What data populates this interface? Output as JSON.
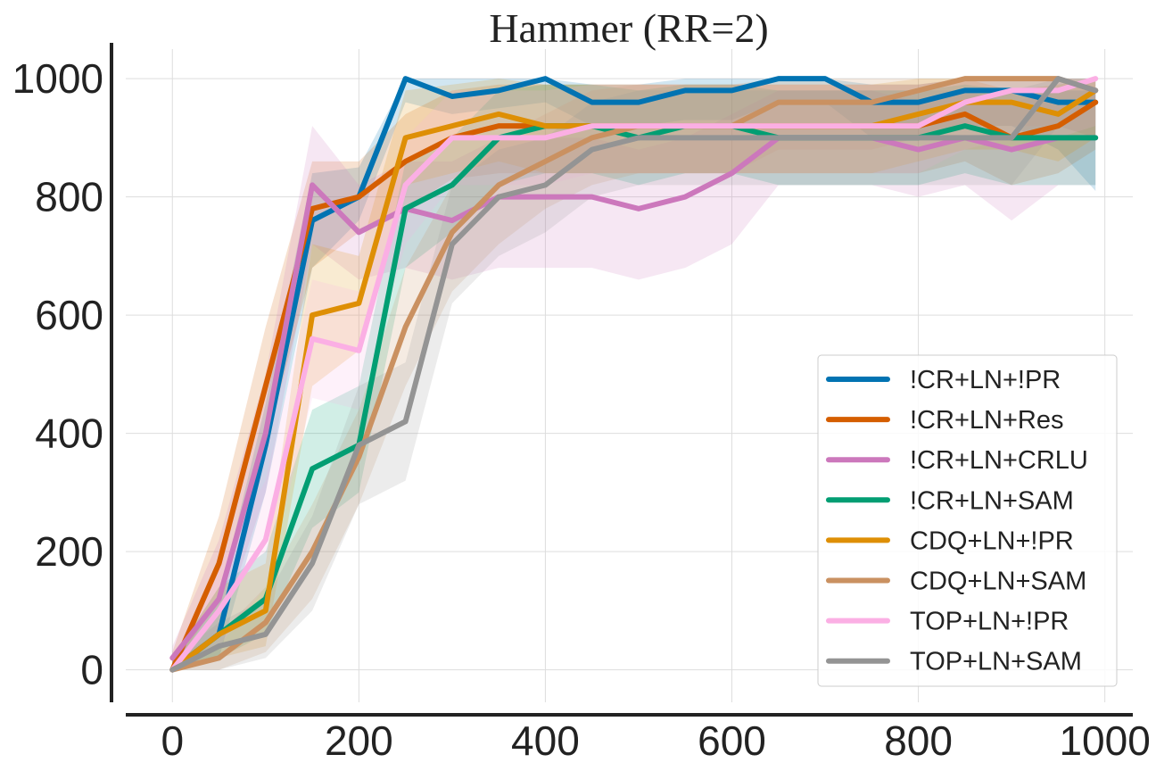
{
  "chart_data": {
    "type": "line",
    "title": "Hammer (RR=2)",
    "xlabel": "",
    "ylabel": "",
    "xlim": [
      -50,
      1030
    ],
    "ylim": [
      -55,
      1050
    ],
    "xticks": [
      0,
      200,
      400,
      600,
      800,
      1000
    ],
    "yticks": [
      0,
      200,
      400,
      600,
      800,
      1000
    ],
    "grid": true,
    "legend_position": "lower-right",
    "x": [
      0,
      50,
      100,
      150,
      200,
      250,
      300,
      350,
      400,
      450,
      500,
      550,
      600,
      650,
      700,
      750,
      800,
      850,
      900,
      950,
      990
    ],
    "series": [
      {
        "name": "!CR+LN+!PR",
        "color": "#0173b2",
        "values": [
          0,
          60,
          380,
          760,
          800,
          1000,
          970,
          980,
          1000,
          960,
          960,
          980,
          980,
          1000,
          1000,
          960,
          960,
          980,
          980,
          960,
          960
        ],
        "lower": [
          0,
          20,
          300,
          680,
          760,
          960,
          940,
          950,
          960,
          920,
          920,
          930,
          930,
          960,
          960,
          900,
          900,
          920,
          920,
          880,
          810
        ],
        "upper": [
          20,
          120,
          450,
          840,
          850,
          1000,
          1000,
          1000,
          1000,
          990,
          990,
          1000,
          1000,
          1000,
          1000,
          990,
          990,
          1000,
          1000,
          1000,
          1000
        ]
      },
      {
        "name": "!CR+LN+Res",
        "color": "#d55e00",
        "values": [
          0,
          180,
          480,
          780,
          800,
          860,
          900,
          920,
          920,
          920,
          920,
          920,
          920,
          920,
          920,
          920,
          920,
          940,
          900,
          920,
          960
        ],
        "lower": [
          0,
          120,
          380,
          680,
          740,
          780,
          830,
          840,
          840,
          840,
          840,
          840,
          840,
          840,
          840,
          840,
          840,
          860,
          820,
          840,
          880
        ],
        "upper": [
          30,
          260,
          580,
          860,
          860,
          940,
          980,
          990,
          990,
          990,
          990,
          990,
          990,
          990,
          990,
          990,
          990,
          1000,
          980,
          990,
          1000
        ]
      },
      {
        "name": "!CR+LN+CRLU",
        "color": "#cc78bc",
        "values": [
          20,
          120,
          400,
          820,
          740,
          780,
          760,
          800,
          800,
          800,
          780,
          800,
          840,
          900,
          900,
          900,
          880,
          900,
          880,
          900,
          900
        ],
        "lower": [
          0,
          60,
          300,
          720,
          660,
          680,
          660,
          680,
          680,
          680,
          660,
          680,
          720,
          820,
          820,
          820,
          800,
          820,
          760,
          820,
          820
        ],
        "upper": [
          40,
          220,
          500,
          920,
          820,
          860,
          860,
          900,
          900,
          900,
          880,
          900,
          940,
          980,
          980,
          980,
          960,
          980,
          960,
          980,
          980
        ]
      },
      {
        "name": "!CR+LN+SAM",
        "color": "#029e73",
        "values": [
          0,
          60,
          120,
          340,
          380,
          780,
          820,
          900,
          920,
          920,
          900,
          920,
          920,
          900,
          900,
          900,
          900,
          920,
          900,
          900,
          900
        ],
        "lower": [
          0,
          20,
          60,
          240,
          300,
          680,
          740,
          820,
          840,
          840,
          820,
          840,
          840,
          820,
          820,
          820,
          820,
          840,
          820,
          820,
          820
        ],
        "upper": [
          20,
          140,
          200,
          440,
          480,
          860,
          900,
          980,
          990,
          990,
          980,
          990,
          990,
          980,
          980,
          980,
          980,
          990,
          980,
          980,
          980
        ]
      },
      {
        "name": "CDQ+LN+!PR",
        "color": "#de8f05",
        "values": [
          0,
          60,
          100,
          600,
          620,
          900,
          920,
          940,
          920,
          920,
          920,
          920,
          920,
          920,
          920,
          920,
          940,
          960,
          960,
          940,
          980
        ],
        "lower": [
          0,
          20,
          40,
          480,
          540,
          820,
          840,
          860,
          840,
          840,
          840,
          840,
          840,
          840,
          840,
          840,
          860,
          880,
          880,
          860,
          900
        ],
        "upper": [
          20,
          140,
          180,
          720,
          700,
          980,
          990,
          1000,
          990,
          990,
          990,
          990,
          990,
          990,
          990,
          990,
          1000,
          1000,
          1000,
          1000,
          1000
        ]
      },
      {
        "name": "CDQ+LN+SAM",
        "color": "#ca9161",
        "values": [
          0,
          20,
          80,
          200,
          360,
          580,
          740,
          820,
          860,
          900,
          920,
          920,
          920,
          960,
          960,
          960,
          980,
          1000,
          1000,
          1000,
          980
        ],
        "lower": [
          0,
          0,
          30,
          120,
          280,
          480,
          640,
          720,
          780,
          820,
          840,
          840,
          840,
          880,
          880,
          880,
          900,
          920,
          920,
          920,
          900
        ],
        "upper": [
          20,
          60,
          140,
          280,
          440,
          680,
          820,
          900,
          940,
          980,
          990,
          990,
          990,
          1000,
          1000,
          1000,
          1000,
          1000,
          1000,
          1000,
          1000
        ]
      },
      {
        "name": "TOP+LN+!PR",
        "color": "#fbafe4",
        "values": [
          0,
          100,
          220,
          560,
          540,
          820,
          900,
          900,
          900,
          920,
          920,
          920,
          920,
          920,
          920,
          920,
          920,
          960,
          980,
          980,
          1000
        ],
        "lower": [
          0,
          40,
          140,
          460,
          440,
          720,
          820,
          820,
          820,
          840,
          840,
          840,
          840,
          840,
          840,
          840,
          840,
          880,
          900,
          900,
          920
        ],
        "upper": [
          20,
          180,
          320,
          660,
          640,
          900,
          980,
          980,
          980,
          990,
          990,
          990,
          990,
          990,
          990,
          990,
          990,
          1000,
          1000,
          1000,
          1000
        ]
      },
      {
        "name": "TOP+LN+SAM",
        "color": "#949494",
        "values": [
          0,
          40,
          60,
          180,
          380,
          420,
          720,
          800,
          820,
          880,
          900,
          900,
          900,
          900,
          900,
          900,
          900,
          900,
          900,
          1000,
          980
        ],
        "lower": [
          0,
          0,
          20,
          100,
          280,
          320,
          620,
          700,
          740,
          800,
          820,
          820,
          820,
          820,
          820,
          820,
          820,
          820,
          820,
          920,
          900
        ],
        "upper": [
          20,
          80,
          120,
          260,
          480,
          520,
          820,
          880,
          900,
          960,
          980,
          980,
          980,
          980,
          980,
          980,
          980,
          980,
          980,
          1000,
          1000
        ]
      }
    ]
  }
}
